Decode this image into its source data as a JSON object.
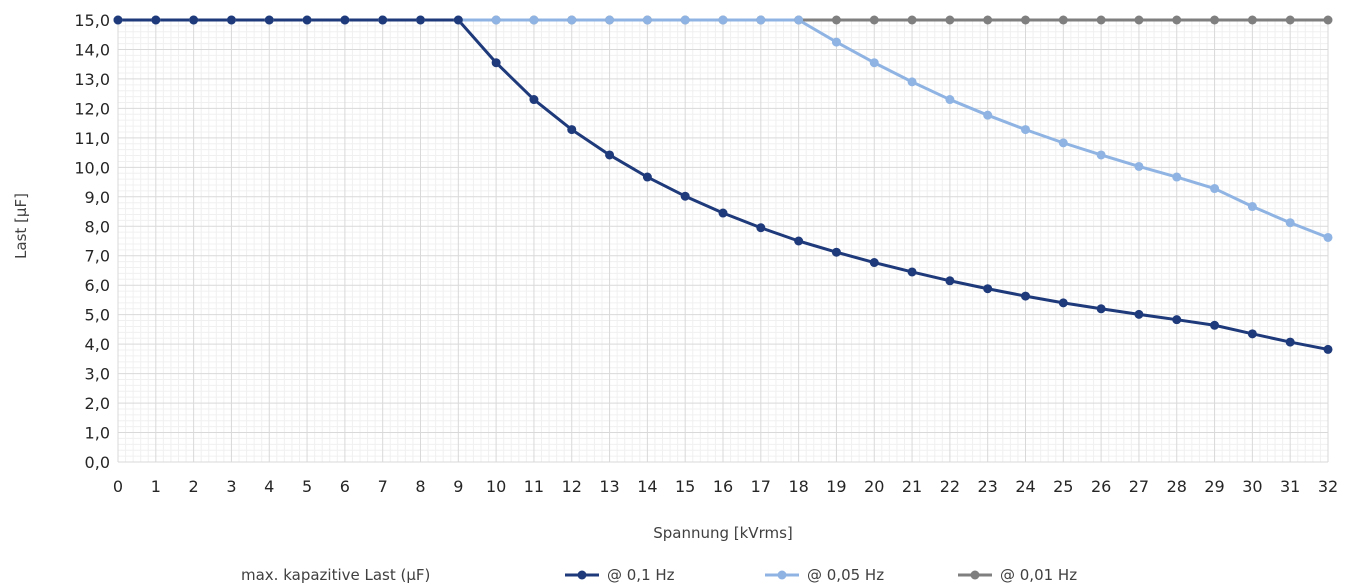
{
  "chart_data": {
    "type": "line",
    "xlabel": "Spannung [kVrms]",
    "ylabel": "Last [µF]",
    "categories": [
      0,
      1,
      2,
      3,
      4,
      5,
      6,
      7,
      8,
      9,
      10,
      11,
      12,
      13,
      14,
      15,
      16,
      17,
      18,
      19,
      20,
      21,
      22,
      23,
      24,
      25,
      26,
      27,
      28,
      29,
      30,
      31,
      32
    ],
    "ylim": [
      0,
      15
    ],
    "ytick_step": 1,
    "ytick_labels": [
      "0,0",
      "1,0",
      "2,0",
      "3,0",
      "4,0",
      "5,0",
      "6,0",
      "7,0",
      "8,0",
      "9,0",
      "10,0",
      "11,0",
      "12,0",
      "13,0",
      "14,0",
      "15,0"
    ],
    "grid": "major and minor",
    "legend_title": "max. kapazitive Last (µF)",
    "legend_position": "bottom",
    "series": [
      {
        "name": "@ 0,1 Hz",
        "color": "#1f3a7a",
        "values": [
          15,
          15,
          15,
          15,
          15,
          15,
          15,
          15,
          15,
          15,
          13.55,
          12.3,
          11.28,
          10.42,
          9.67,
          9.02,
          8.45,
          7.95,
          7.5,
          7.12,
          6.77,
          6.45,
          6.15,
          5.88,
          5.63,
          5.4,
          5.2,
          5.01,
          4.83,
          4.64,
          4.35,
          4.07,
          3.82
        ]
      },
      {
        "name": "@ 0,05 Hz",
        "color": "#8fb4e3",
        "values": [
          15,
          15,
          15,
          15,
          15,
          15,
          15,
          15,
          15,
          15,
          15,
          15,
          15,
          15,
          15,
          15,
          15,
          15,
          15,
          14.25,
          13.55,
          12.9,
          12.3,
          11.77,
          11.28,
          10.83,
          10.42,
          10.03,
          9.67,
          9.28,
          8.67,
          8.12,
          7.62
        ]
      },
      {
        "name": "@ 0,01 Hz",
        "color": "#7f7f7f",
        "values": [
          15,
          15,
          15,
          15,
          15,
          15,
          15,
          15,
          15,
          15,
          15,
          15,
          15,
          15,
          15,
          15,
          15,
          15,
          15,
          15,
          15,
          15,
          15,
          15,
          15,
          15,
          15,
          15,
          15,
          15,
          15,
          15,
          15
        ]
      }
    ]
  }
}
